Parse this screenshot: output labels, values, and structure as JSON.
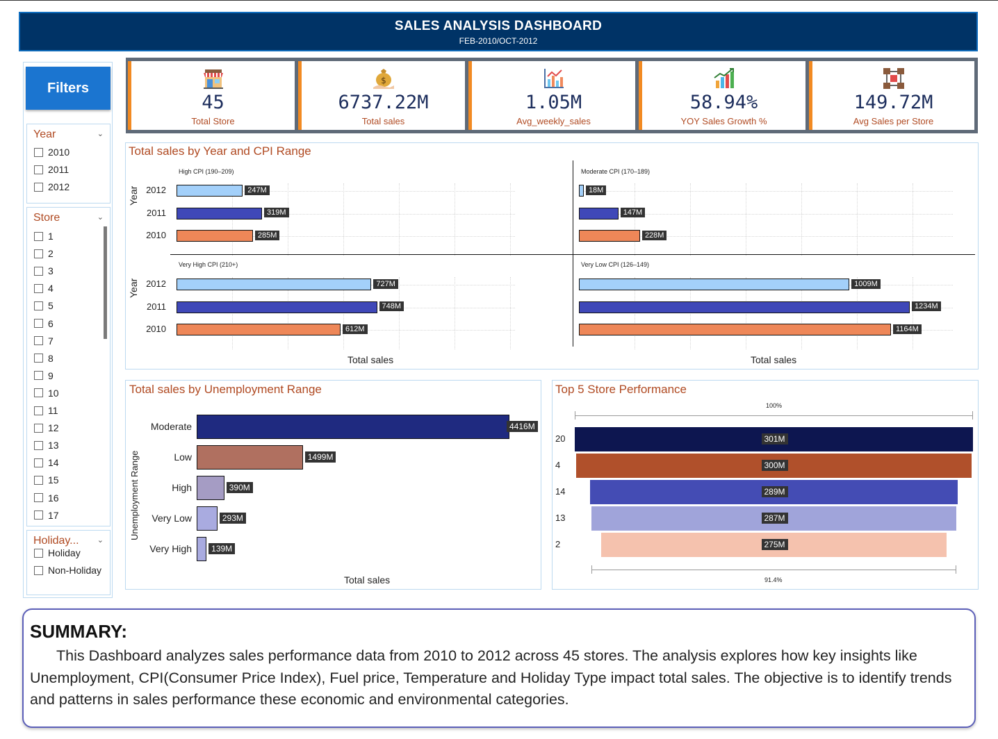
{
  "header": {
    "title": "SALES ANALYSIS DASHBOARD",
    "subtitle": "FEB-2010/OCT-2012"
  },
  "filters": {
    "button_label": "Filters",
    "year": {
      "title": "Year",
      "items": [
        "2010",
        "2011",
        "2012"
      ]
    },
    "store": {
      "title": "Store",
      "items": [
        "1",
        "2",
        "3",
        "4",
        "5",
        "6",
        "7",
        "8",
        "9",
        "10",
        "11",
        "12",
        "13",
        "14",
        "15",
        "16",
        "17"
      ]
    },
    "holiday": {
      "title": "Holiday...",
      "items": [
        "Holiday",
        "Non-Holiday"
      ]
    }
  },
  "kpis": [
    {
      "value": "45",
      "label": "Total Store",
      "icon": "store-icon"
    },
    {
      "value": "6737.22M",
      "label": "Total sales",
      "icon": "money-bag-icon"
    },
    {
      "value": "1.05M",
      "label": "Avg_weekly_sales",
      "icon": "analytics-chart-icon"
    },
    {
      "value": "58.94%",
      "label": "YOY Sales Growth %",
      "icon": "growth-bar-icon"
    },
    {
      "value": "149.72M",
      "label": "Avg Sales per Store",
      "icon": "store-network-icon"
    }
  ],
  "cpi_panel": {
    "title": "Total sales by Year and CPI Range",
    "y_axis_label": "Year",
    "x_axis_label": "Total sales",
    "colors": {
      "2012": "#a3d0fa",
      "2011": "#3f48b8",
      "2010": "#ee8758"
    }
  },
  "unemployment_panel": {
    "title": "Total sales by Unemployment Range",
    "y_axis_label": "Unemployment Range",
    "x_axis_label": "Total sales"
  },
  "top5_panel": {
    "title": "Top 5 Store Performance",
    "top_label": "100%",
    "bottom_label": "91.4%"
  },
  "summary": {
    "heading": "SUMMARY:",
    "text": "This  Dashboard analyzes sales performance data  from 2010 to 2012 across 45 stores. The analysis explores how key insights like Unemployment, CPI(Consumer Price Index), Fuel price, Temperature and Holiday Type impact total sales. The objective is to identify trends and patterns  in sales performance these economic and environmental categories."
  },
  "chart_data": [
    {
      "type": "bar",
      "title": "Total sales by Year and CPI Range",
      "xlabel": "Total sales",
      "ylabel": "Year",
      "unit": "M",
      "panels": [
        {
          "name": "High CPI (190–209)",
          "categories": [
            "2012",
            "2011",
            "2010"
          ],
          "values": [
            247,
            319,
            285
          ],
          "labels": [
            "247M",
            "319M",
            "285M"
          ]
        },
        {
          "name": "Moderate CPI (170–189)",
          "categories": [
            "2012",
            "2011",
            "2010"
          ],
          "values": [
            18,
            147,
            228
          ],
          "labels": [
            "18M",
            "147M",
            "228M"
          ]
        },
        {
          "name": "Very High CPI (210+)",
          "categories": [
            "2012",
            "2011",
            "2010"
          ],
          "values": [
            727,
            748,
            612
          ],
          "labels": [
            "727M",
            "748M",
            "612M"
          ]
        },
        {
          "name": "Very Low CPI (126–149)",
          "categories": [
            "2012",
            "2011",
            "2010"
          ],
          "values": [
            1009,
            1234,
            1164
          ],
          "labels": [
            "1009M",
            "1234M",
            "1164M"
          ]
        }
      ],
      "xlim": [
        0,
        1400
      ]
    },
    {
      "type": "bar",
      "title": "Total sales by Unemployment Range",
      "xlabel": "Total sales",
      "ylabel": "Unemployment Range",
      "categories": [
        "Moderate",
        "Low",
        "High",
        "Very Low",
        "Very High"
      ],
      "values": [
        4416,
        1499,
        390,
        293,
        139
      ],
      "labels": [
        "4416M",
        "1499M",
        "390M",
        "293M",
        "139M"
      ],
      "colors": [
        "#1f2a80",
        "#b07060",
        "#a59cc4",
        "#a9abe0",
        "#a9abe0"
      ],
      "xlim": [
        0,
        4416
      ]
    },
    {
      "type": "bar",
      "title": "Top 5 Store Performance",
      "categories": [
        "20",
        "4",
        "14",
        "13",
        "2"
      ],
      "values": [
        301,
        300,
        289,
        287,
        275
      ],
      "labels": [
        "301M",
        "300M",
        "289M",
        "287M",
        "275M"
      ],
      "colors": [
        "#0d1650",
        "#b0502b",
        "#444cb4",
        "#a0a4da",
        "#f5c2ae"
      ],
      "top_percent": 100,
      "bottom_percent": 91.4
    }
  ]
}
